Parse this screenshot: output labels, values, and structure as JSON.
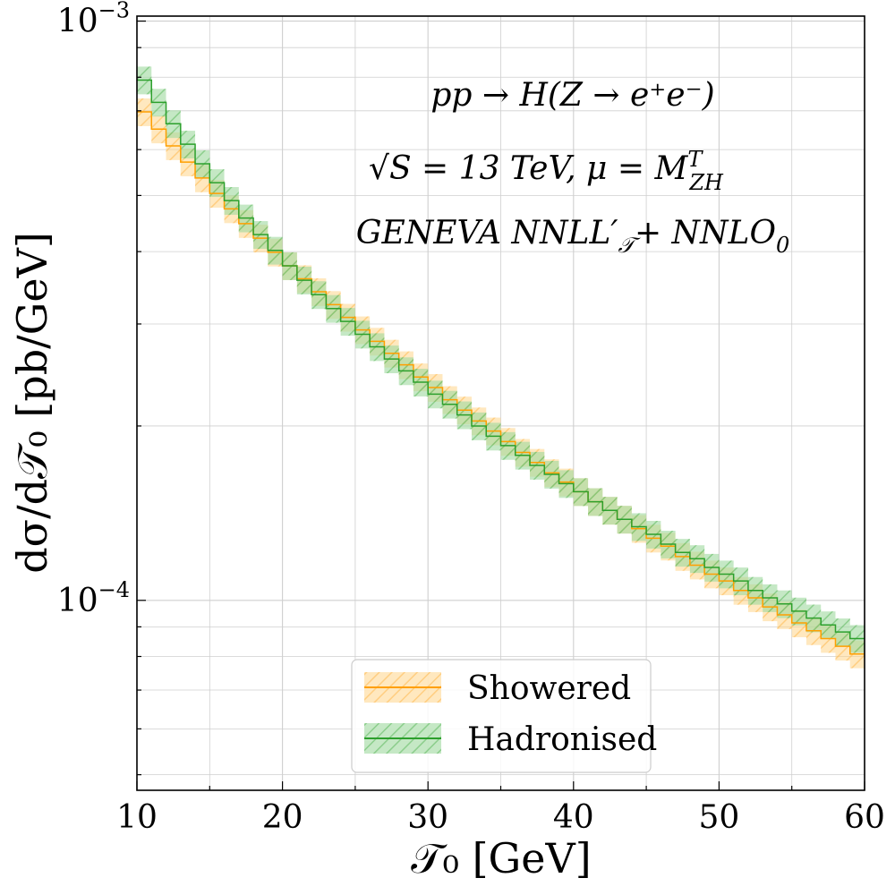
{
  "chart_data": {
    "type": "step-histogram",
    "xlabel": "𝒯₀   [GeV]",
    "ylabel": "dσ/d𝒯₀   [pb/GeV]",
    "xlim": [
      10,
      60
    ],
    "ylim": [
      4.7e-05,
      0.00102
    ],
    "yscale": "log",
    "grid": true,
    "x_ticks": [
      10,
      20,
      30,
      40,
      50,
      60
    ],
    "x_tick_labels": [
      "10",
      "20",
      "30",
      "40",
      "50",
      "60"
    ],
    "y_ticks": [
      0.0001,
      0.001
    ],
    "y_tick_labels": [
      {
        "base": "10",
        "exp": "−4"
      },
      {
        "base": "10",
        "exp": "−3"
      }
    ],
    "annotations": [
      "pp → H(Z → e⁺e⁻)",
      "√S = 13 TeV,  μ = M",
      "GENEVA   NNLL′",
      "+ NNLO"
    ],
    "annotation_parts": {
      "line2_sup": "T",
      "line2_sub": "ZH",
      "line3_sub": "𝒯",
      "line3_end_sub": "0"
    },
    "legend": {
      "position": "bottom-center",
      "entries": [
        "Showered",
        "Hadronised"
      ]
    },
    "bin_width": 1,
    "series": [
      {
        "name": "Showered",
        "color": "#ff9f00",
        "band_color": "#ffd27f",
        "rel_band": 0.055,
        "x_start": 10,
        "values": [
          0.000697,
          0.000651,
          0.000609,
          0.000571,
          0.000536,
          0.000504,
          0.000474,
          0.000447,
          0.000422,
          0.000399,
          0.000378,
          0.000359,
          0.000341,
          0.000324,
          0.000308,
          0.000293,
          0.00028,
          0.000267,
          0.000255,
          0.000243,
          0.000233,
          0.000222,
          0.000213,
          0.000204,
          0.000196,
          0.000188,
          0.00018,
          0.000173,
          0.000166,
          0.00016,
          0.000154,
          0.000148,
          0.000143,
          0.000138,
          0.000133,
          0.000128,
          0.000124,
          0.000119,
          0.000115,
          0.000111,
          0.000108,
          0.000104,
          0.000101,
          9.74e-05,
          9.44e-05,
          9.14e-05,
          8.86e-05,
          8.59e-05,
          8.33e-05,
          8.08e-05
        ]
      },
      {
        "name": "Hadronised",
        "color": "#2ca02c",
        "band_color": "#9fd89f",
        "rel_band": 0.055,
        "x_start": 10,
        "values": [
          0.000791,
          0.000724,
          0.000665,
          0.000613,
          0.000567,
          0.000526,
          0.00049,
          0.000457,
          0.000428,
          0.000402,
          0.000378,
          0.000357,
          0.000337,
          0.000319,
          0.000303,
          0.000288,
          0.000274,
          0.000261,
          0.000249,
          0.000238,
          0.000227,
          0.000218,
          0.000209,
          0.0002,
          0.000192,
          0.000185,
          0.000178,
          0.000171,
          0.000165,
          0.000159,
          0.000154,
          0.000148,
          0.000143,
          0.000138,
          0.000134,
          0.00013,
          0.000125,
          0.000121,
          0.000118,
          0.000114,
          0.000111,
          0.000108,
          0.000104,
          0.000101,
          9.86e-05,
          9.58e-05,
          9.32e-05,
          9.07e-05,
          8.82e-05,
          8.59e-05
        ]
      }
    ]
  }
}
